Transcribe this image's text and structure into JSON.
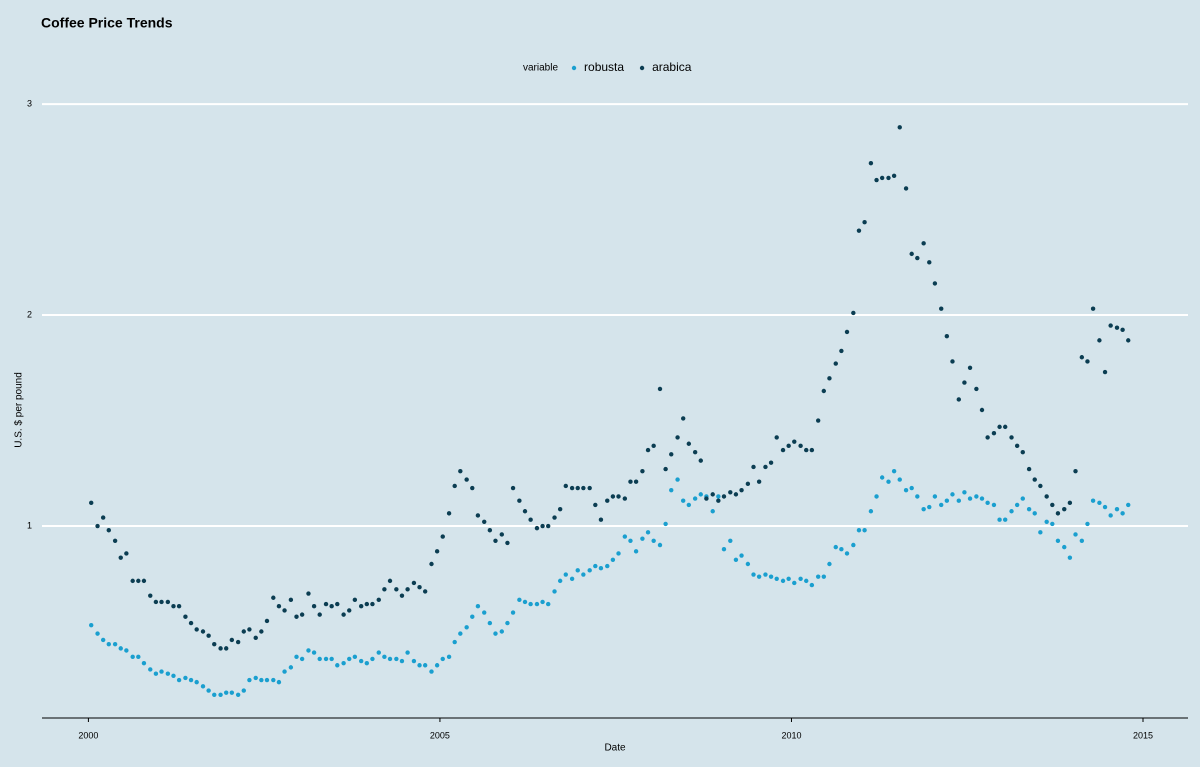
{
  "chart_data": {
    "type": "scatter",
    "title": "Coffee Price Trends",
    "xlabel": "Date",
    "ylabel": "U.S. $ per pound",
    "legend_title": "variable",
    "legend": "top",
    "grid": true,
    "xlim": [
      1999.34,
      2015.64
    ],
    "ylim": [
      0.09,
      3.1
    ],
    "xticks": [
      2000,
      2005,
      2010,
      2015
    ],
    "yticks": [
      1,
      2,
      3
    ],
    "x": [
      2000.04,
      2000.13,
      2000.21,
      2000.29,
      2000.38,
      2000.46,
      2000.54,
      2000.63,
      2000.71,
      2000.79,
      2000.88,
      2000.96,
      2001.04,
      2001.13,
      2001.21,
      2001.29,
      2001.38,
      2001.46,
      2001.54,
      2001.63,
      2001.71,
      2001.79,
      2001.88,
      2001.96,
      2002.04,
      2002.13,
      2002.21,
      2002.29,
      2002.38,
      2002.46,
      2002.54,
      2002.63,
      2002.71,
      2002.79,
      2002.88,
      2002.96,
      2003.04,
      2003.13,
      2003.21,
      2003.29,
      2003.38,
      2003.46,
      2003.54,
      2003.63,
      2003.71,
      2003.79,
      2003.88,
      2003.96,
      2004.04,
      2004.13,
      2004.21,
      2004.29,
      2004.38,
      2004.46,
      2004.54,
      2004.63,
      2004.71,
      2004.79,
      2004.88,
      2004.96,
      2005.04,
      2005.13,
      2005.21,
      2005.29,
      2005.38,
      2005.46,
      2005.54,
      2005.63,
      2005.71,
      2005.79,
      2005.88,
      2005.96,
      2006.04,
      2006.13,
      2006.21,
      2006.29,
      2006.38,
      2006.46,
      2006.54,
      2006.63,
      2006.71,
      2006.79,
      2006.88,
      2006.96,
      2007.04,
      2007.13,
      2007.21,
      2007.29,
      2007.38,
      2007.46,
      2007.54,
      2007.63,
      2007.71,
      2007.79,
      2007.88,
      2007.96,
      2008.04,
      2008.13,
      2008.21,
      2008.29,
      2008.38,
      2008.46,
      2008.54,
      2008.63,
      2008.71,
      2008.79,
      2008.88,
      2008.96,
      2009.04,
      2009.13,
      2009.21,
      2009.29,
      2009.38,
      2009.46,
      2009.54,
      2009.63,
      2009.71,
      2009.79,
      2009.88,
      2009.96,
      2010.04,
      2010.13,
      2010.21,
      2010.29,
      2010.38,
      2010.46,
      2010.54,
      2010.63,
      2010.71,
      2010.79,
      2010.88,
      2010.96,
      2011.04,
      2011.13,
      2011.21,
      2011.29,
      2011.38,
      2011.46,
      2011.54,
      2011.63,
      2011.71,
      2011.79,
      2011.88,
      2011.96,
      2012.04,
      2012.13,
      2012.21,
      2012.29,
      2012.38,
      2012.46,
      2012.54,
      2012.63,
      2012.71,
      2012.79,
      2012.88,
      2012.96,
      2013.04,
      2013.13,
      2013.21,
      2013.29,
      2013.38,
      2013.46,
      2013.54,
      2013.63,
      2013.71,
      2013.79,
      2013.88,
      2013.96,
      2014.04,
      2014.13,
      2014.21,
      2014.29,
      2014.38,
      2014.46,
      2014.54,
      2014.63,
      2014.71,
      2014.79
    ],
    "series": [
      {
        "name": "robusta",
        "color": "#1a9fcf",
        "values": [
          0.53,
          0.49,
          0.46,
          0.44,
          0.44,
          0.42,
          0.41,
          0.38,
          0.38,
          0.35,
          0.32,
          0.3,
          0.31,
          0.3,
          0.29,
          0.27,
          0.28,
          0.27,
          0.26,
          0.24,
          0.22,
          0.2,
          0.2,
          0.21,
          0.21,
          0.2,
          0.22,
          0.27,
          0.28,
          0.27,
          0.27,
          0.27,
          0.26,
          0.31,
          0.33,
          0.38,
          0.37,
          0.41,
          0.4,
          0.37,
          0.37,
          0.37,
          0.34,
          0.35,
          0.37,
          0.38,
          0.36,
          0.35,
          0.37,
          0.4,
          0.38,
          0.37,
          0.37,
          0.36,
          0.4,
          0.36,
          0.34,
          0.34,
          0.31,
          0.34,
          0.37,
          0.38,
          0.45,
          0.49,
          0.52,
          0.57,
          0.62,
          0.59,
          0.54,
          0.49,
          0.5,
          0.54,
          0.59,
          0.65,
          0.64,
          0.63,
          0.63,
          0.64,
          0.63,
          0.69,
          0.74,
          0.77,
          0.75,
          0.79,
          0.77,
          0.79,
          0.81,
          0.8,
          0.81,
          0.84,
          0.87,
          0.95,
          0.93,
          0.88,
          0.94,
          0.97,
          0.93,
          0.91,
          1.01,
          1.17,
          1.22,
          1.12,
          1.1,
          1.13,
          1.15,
          1.14,
          1.07,
          1.14,
          0.89,
          0.93,
          0.84,
          0.86,
          0.82,
          0.77,
          0.76,
          0.77,
          0.76,
          0.75,
          0.74,
          0.75,
          0.73,
          0.75,
          0.74,
          0.72,
          0.76,
          0.76,
          0.82,
          0.9,
          0.89,
          0.87,
          0.91,
          0.98,
          0.98,
          1.07,
          1.14,
          1.23,
          1.21,
          1.26,
          1.22,
          1.17,
          1.18,
          1.14,
          1.08,
          1.09,
          1.14,
          1.1,
          1.12,
          1.15,
          1.12,
          1.16,
          1.13,
          1.14,
          1.13,
          1.11,
          1.1,
          1.03,
          1.03,
          1.07,
          1.1,
          1.13,
          1.08,
          1.06,
          0.97,
          1.02,
          1.01,
          0.93,
          0.9,
          0.85,
          0.96,
          0.93,
          1.01,
          1.12,
          1.11,
          1.09,
          1.05,
          1.08,
          1.06,
          1.1
        ]
      },
      {
        "name": "arabica",
        "color": "#0b3d52",
        "values": [
          1.11,
          1.0,
          1.04,
          0.98,
          0.93,
          0.85,
          0.87,
          0.74,
          0.74,
          0.74,
          0.67,
          0.64,
          0.64,
          0.64,
          0.62,
          0.62,
          0.57,
          0.54,
          0.51,
          0.5,
          0.48,
          0.44,
          0.42,
          0.42,
          0.46,
          0.45,
          0.5,
          0.51,
          0.47,
          0.5,
          0.55,
          0.66,
          0.62,
          0.6,
          0.65,
          0.57,
          0.58,
          0.68,
          0.62,
          0.58,
          0.63,
          0.62,
          0.63,
          0.58,
          0.6,
          0.65,
          0.62,
          0.63,
          0.63,
          0.65,
          0.7,
          0.74,
          0.7,
          0.67,
          0.7,
          0.73,
          0.71,
          0.69,
          0.82,
          0.88,
          0.95,
          1.06,
          1.19,
          1.26,
          1.22,
          1.18,
          1.05,
          1.02,
          0.98,
          0.93,
          0.96,
          0.92,
          1.18,
          1.12,
          1.07,
          1.03,
          0.99,
          1.0,
          1.0,
          1.04,
          1.08,
          1.19,
          1.18,
          1.18,
          1.18,
          1.18,
          1.1,
          1.03,
          1.12,
          1.14,
          1.14,
          1.13,
          1.21,
          1.21,
          1.26,
          1.36,
          1.38,
          1.65,
          1.27,
          1.34,
          1.42,
          1.51,
          1.39,
          1.35,
          1.31,
          1.13,
          1.15,
          1.12,
          1.14,
          1.16,
          1.15,
          1.17,
          1.2,
          1.28,
          1.21,
          1.28,
          1.3,
          1.42,
          1.36,
          1.38,
          1.4,
          1.38,
          1.36,
          1.36,
          1.5,
          1.64,
          1.7,
          1.77,
          1.83,
          1.92,
          2.01,
          2.4,
          2.44,
          2.72,
          2.64,
          2.65,
          2.65,
          2.66,
          2.89,
          2.6,
          2.29,
          2.27,
          2.34,
          2.25,
          2.15,
          2.03,
          1.9,
          1.78,
          1.6,
          1.68,
          1.75,
          1.65,
          1.55,
          1.42,
          1.44,
          1.47,
          1.47,
          1.42,
          1.38,
          1.35,
          1.27,
          1.22,
          1.19,
          1.14,
          1.1,
          1.06,
          1.08,
          1.11,
          1.26,
          1.8,
          1.78,
          2.03,
          1.88,
          1.73,
          1.95,
          1.94,
          1.93,
          1.88
        ]
      }
    ]
  }
}
